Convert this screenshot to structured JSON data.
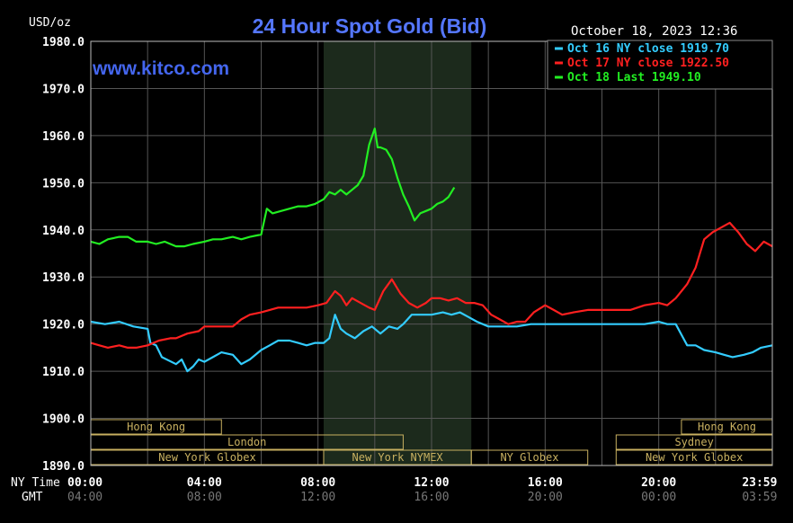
{
  "chart_data": {
    "type": "line",
    "title": "24 Hour Spot Gold (Bid)",
    "ylabel": "USD/oz",
    "watermark": "www.kitco.com",
    "timestamp": "October 18, 2023 12:36",
    "ylim": [
      1890,
      1980
    ],
    "yticks": [
      1890,
      1900,
      1910,
      1920,
      1930,
      1940,
      1950,
      1960,
      1970,
      1980
    ],
    "ytick_labels": [
      "1890.0",
      "1900.0",
      "1910.0",
      "1920.0",
      "1930.0",
      "1940.0",
      "1950.0",
      "1960.0",
      "1970.0",
      "1980.0"
    ],
    "xlim": [
      0,
      24
    ],
    "x_axis_label": "NY Time",
    "gmt_label": "GMT",
    "xticks_ny": [
      {
        "hour": 0,
        "label": "00:00"
      },
      {
        "hour": 4,
        "label": "04:00"
      },
      {
        "hour": 8,
        "label": "08:00"
      },
      {
        "hour": 12,
        "label": "12:00"
      },
      {
        "hour": 16,
        "label": "16:00"
      },
      {
        "hour": 20,
        "label": "20:00"
      },
      {
        "hour": 23.983,
        "label": "23:59"
      }
    ],
    "xticks_gmt": [
      "04:00",
      "08:00",
      "12:00",
      "16:00",
      "20:00",
      "00:00",
      "03:59"
    ],
    "highlight_hours": [
      8.2,
      13.4
    ],
    "legend": [
      {
        "text": "Oct 16 NY close 1919.70",
        "color": "#33ccff"
      },
      {
        "text": "Oct 17 NY close 1922.50",
        "color": "#ff2020"
      },
      {
        "text": "Oct 18 Last 1949.10",
        "color": "#22ee22"
      }
    ],
    "series": [
      {
        "name": "Oct 16",
        "color": "#33ccff",
        "x": [
          0,
          0.5,
          1,
          1.5,
          2,
          2.1,
          2.3,
          2.5,
          3,
          3.2,
          3.4,
          3.6,
          3.8,
          4,
          4.3,
          4.6,
          5,
          5.3,
          5.6,
          6,
          6.3,
          6.6,
          7,
          7.3,
          7.6,
          7.9,
          8.2,
          8.4,
          8.6,
          8.8,
          9,
          9.3,
          9.6,
          9.9,
          10.2,
          10.5,
          10.8,
          11,
          11.3,
          11.6,
          12,
          12.4,
          12.7,
          13,
          13.3,
          13.6,
          14,
          14.5,
          15,
          15.5,
          16,
          16.5,
          17,
          17.5,
          18,
          18.5,
          19,
          19.5,
          20,
          20.3,
          20.6,
          21,
          21.3,
          21.6,
          22,
          22.3,
          22.6,
          23,
          23.3,
          23.6,
          24
        ],
        "y": [
          1920.5,
          1920,
          1920.5,
          1919.5,
          1919,
          1916,
          1915.5,
          1913,
          1911.5,
          1912.5,
          1910,
          1911,
          1912.5,
          1912,
          1913,
          1914,
          1913.5,
          1911.5,
          1912.5,
          1914.5,
          1915.5,
          1916.5,
          1916.5,
          1916,
          1915.5,
          1916,
          1916,
          1917,
          1922,
          1919,
          1918,
          1917,
          1918.5,
          1919.5,
          1918,
          1919.5,
          1919,
          1920,
          1922,
          1922,
          1922,
          1922.5,
          1922,
          1922.5,
          1921.5,
          1920.5,
          1919.5,
          1919.5,
          1919.5,
          1920,
          1920,
          1920,
          1920,
          1920,
          1920,
          1920,
          1920,
          1920,
          1920.5,
          1920,
          1920,
          1915.5,
          1915.5,
          1914.5,
          1914,
          1913.5,
          1913,
          1913.5,
          1914,
          1915,
          1915.5
        ]
      },
      {
        "name": "Oct 17",
        "color": "#ff2020",
        "x": [
          0,
          0.3,
          0.6,
          1,
          1.3,
          1.6,
          2,
          2.4,
          2.8,
          3,
          3.4,
          3.8,
          4,
          4.3,
          4.6,
          5,
          5.3,
          5.6,
          6,
          6.3,
          6.6,
          7,
          7.3,
          7.6,
          8,
          8.3,
          8.6,
          8.8,
          9,
          9.2,
          9.5,
          9.8,
          10,
          10.3,
          10.6,
          10.9,
          11.2,
          11.5,
          11.8,
          12,
          12.3,
          12.6,
          12.9,
          13.2,
          13.5,
          13.8,
          14.1,
          14.4,
          14.7,
          15,
          15.3,
          15.6,
          16,
          16.3,
          16.6,
          17,
          17.5,
          18,
          18.5,
          19,
          19.5,
          20,
          20.3,
          20.6,
          21,
          21.3,
          21.6,
          21.9,
          22.2,
          22.5,
          22.8,
          23.1,
          23.4,
          23.7,
          24
        ],
        "y": [
          1916,
          1915.5,
          1915,
          1915.5,
          1915,
          1915,
          1915.5,
          1916.5,
          1917,
          1917,
          1918,
          1918.5,
          1919.5,
          1919.5,
          1919.5,
          1919.5,
          1921,
          1922,
          1922.5,
          1923,
          1923.5,
          1923.5,
          1923.5,
          1923.5,
          1924,
          1924.5,
          1927,
          1926,
          1924,
          1925.5,
          1924.5,
          1923.5,
          1923,
          1927,
          1929.5,
          1926.5,
          1924.5,
          1923.5,
          1924.5,
          1925.5,
          1925.5,
          1925,
          1925.5,
          1924.5,
          1924.5,
          1924,
          1922,
          1921,
          1920,
          1920.5,
          1920.5,
          1922.5,
          1924,
          1923,
          1922,
          1922.5,
          1923,
          1923,
          1923,
          1923,
          1924,
          1924.5,
          1924,
          1925.5,
          1928.5,
          1932,
          1938,
          1939.5,
          1940.5,
          1941.5,
          1939.5,
          1937,
          1935.5,
          1937.5,
          1936.5
        ]
      },
      {
        "name": "Oct 18",
        "color": "#22ee22",
        "x": [
          0,
          0.3,
          0.6,
          1,
          1.3,
          1.6,
          2,
          2.3,
          2.6,
          3,
          3.3,
          3.6,
          4,
          4.3,
          4.6,
          5,
          5.3,
          5.6,
          6,
          6.2,
          6.4,
          6.7,
          7,
          7.3,
          7.6,
          7.9,
          8.2,
          8.4,
          8.6,
          8.8,
          9,
          9.2,
          9.4,
          9.6,
          9.8,
          10,
          10.1,
          10.2,
          10.4,
          10.6,
          10.8,
          11,
          11.2,
          11.4,
          11.6,
          11.8,
          12,
          12.2,
          12.4,
          12.6,
          12.8
        ],
        "y": [
          1937.5,
          1937,
          1938,
          1938.5,
          1938.5,
          1937.5,
          1937.5,
          1937,
          1937.5,
          1936.5,
          1936.5,
          1937,
          1937.5,
          1938,
          1938,
          1938.5,
          1938,
          1938.5,
          1939,
          1944.5,
          1943.5,
          1944,
          1944.5,
          1945,
          1945,
          1945.5,
          1946.5,
          1948,
          1947.5,
          1948.5,
          1947.5,
          1948.5,
          1949.5,
          1951.5,
          1958,
          1961.5,
          1957.5,
          1957.5,
          1957,
          1955,
          1951,
          1947.5,
          1945,
          1942,
          1943.5,
          1944,
          1944.5,
          1945.5,
          1946,
          1947,
          1949
        ]
      }
    ],
    "sessions": {
      "rows": [
        {
          "left": {
            "start": 0,
            "end": 4.6,
            "label": "Hong Kong"
          },
          "right": {
            "start": 20.8,
            "end": 24,
            "label": "Hong Kong"
          }
        },
        {
          "left": {
            "start": 0,
            "end": 11,
            "label": "London"
          },
          "right": {
            "start": 18.5,
            "end": 24,
            "label": "Sydney"
          }
        },
        {
          "left": {
            "start": 0,
            "end": 8.2,
            "label": "New York Globex"
          },
          "mid1": {
            "start": 8.2,
            "end": 13.4,
            "label": "New York NYMEX"
          },
          "mid2": {
            "start": 13.4,
            "end": 17.5,
            "label": "NY Globex"
          },
          "right": {
            "start": 18.5,
            "end": 24,
            "label": "New York Globex"
          }
        }
      ]
    }
  }
}
